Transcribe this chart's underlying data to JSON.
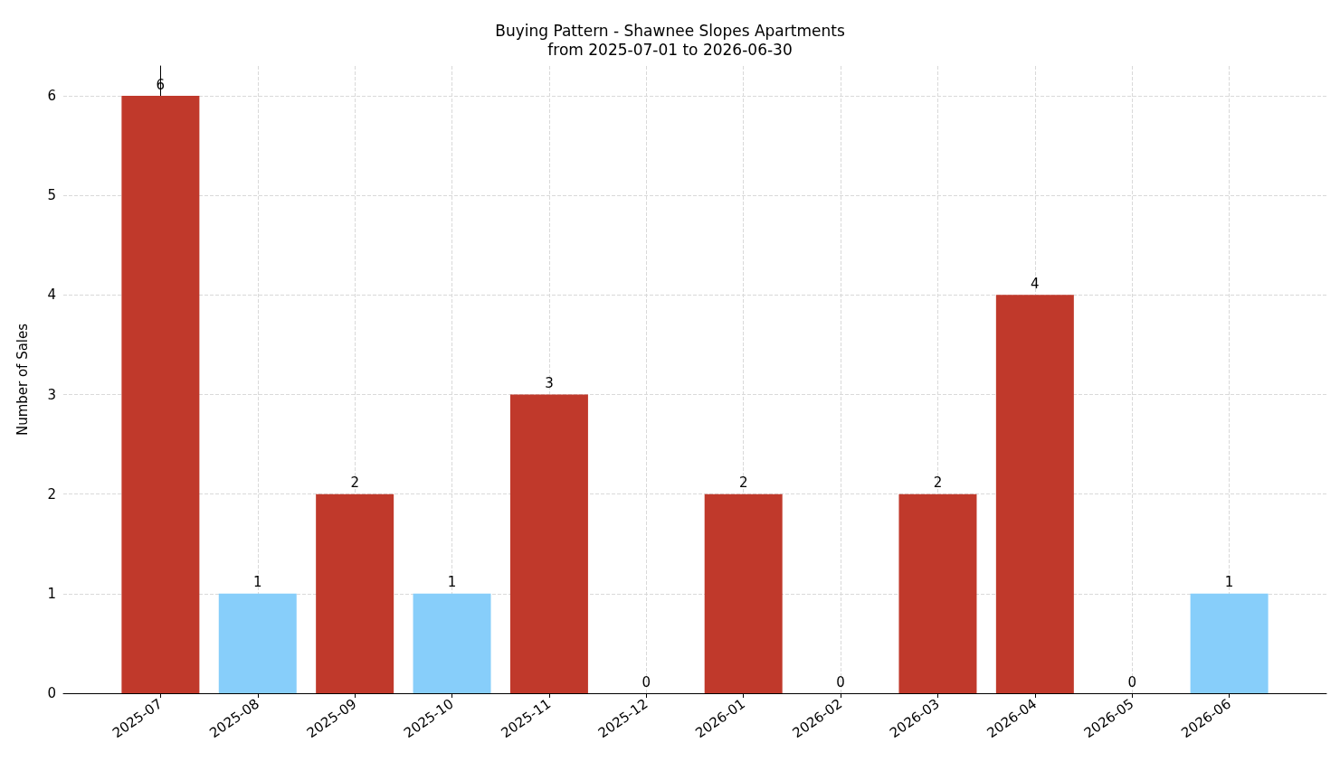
{
  "chart_data": {
    "type": "bar",
    "title": "Buying Pattern - Shawnee Slopes Apartments",
    "subtitle": "from 2025-07-01 to 2026-06-30",
    "ylabel": "Number of Sales",
    "categories": [
      "2025-07",
      "2025-08",
      "2025-09",
      "2025-10",
      "2025-11",
      "2025-12",
      "2026-01",
      "2026-02",
      "2026-03",
      "2026-04",
      "2026-05",
      "2026-06"
    ],
    "values": [
      6,
      1,
      2,
      1,
      3,
      0,
      2,
      0,
      2,
      4,
      0,
      1
    ],
    "colors": [
      "#c0392b",
      "#87cefa",
      "#c0392b",
      "#87cefa",
      "#c0392b",
      "#c0392b",
      "#c0392b",
      "#c0392b",
      "#c0392b",
      "#c0392b",
      "#c0392b",
      "#87cefa"
    ],
    "ylim": [
      0,
      6.3
    ],
    "yticks": [
      0,
      1,
      2,
      3,
      4,
      5,
      6
    ],
    "grid": true,
    "data_labels": true
  }
}
